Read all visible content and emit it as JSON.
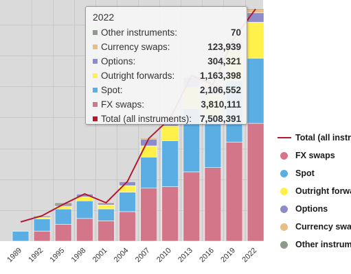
{
  "chart_data": {
    "type": "bar",
    "stacked": true,
    "categories": [
      "1989",
      "1992",
      "1995",
      "1998",
      "2001",
      "2004",
      "2007",
      "2010",
      "2013",
      "2016",
      "2019",
      "2022"
    ],
    "series": [
      {
        "name": "FX swaps",
        "color": "#D3768A",
        "values": [
          0,
          324000,
          546000,
          734000,
          656000,
          954000,
          1714000,
          1759000,
          2240000,
          2378000,
          3202000,
          3810111
        ]
      },
      {
        "name": "Spot",
        "color": "#5BAEE4",
        "values": [
          317000,
          394000,
          494000,
          568000,
          386000,
          631000,
          1005000,
          1489000,
          2047000,
          1652000,
          1979000,
          2106552
        ]
      },
      {
        "name": "Outright forwards",
        "color": "#FFF04A",
        "values": [
          0,
          58000,
          97000,
          128000,
          130000,
          209000,
          362000,
          475000,
          679000,
          700000,
          999000,
          1163398
        ]
      },
      {
        "name": "Options",
        "color": "#8C8CCB",
        "values": [
          0,
          27000,
          41000,
          87000,
          60000,
          119000,
          212000,
          207000,
          337000,
          254000,
          294000,
          304321
        ]
      },
      {
        "name": "Currency swaps",
        "color": "#E6BE86",
        "values": [
          0,
          2000,
          4000,
          10000,
          7000,
          21000,
          31000,
          43000,
          54000,
          82000,
          108000,
          123939
        ]
      },
      {
        "name": "Other instruments",
        "color": "#8E9A8C",
        "values": [
          0,
          0,
          44000,
          0,
          0,
          0,
          0,
          0,
          0,
          0,
          0,
          70
        ]
      }
    ],
    "line_series": {
      "name": "Total (all instruments)",
      "color": "#B4182E",
      "values": [
        620000,
        820000,
        1190000,
        1530000,
        1240000,
        1930000,
        3320000,
        3970000,
        5360000,
        5070000,
        6580000,
        7508391
      ]
    },
    "ylim": [
      0,
      7800000
    ],
    "grid": true,
    "legend_position": "right",
    "tooltip": {
      "title": "2022",
      "rows": [
        {
          "label": "Other instruments:",
          "value": "70",
          "color": "#8E9A8C"
        },
        {
          "label": "Currency swaps:",
          "value": "123,939",
          "color": "#E6BE86"
        },
        {
          "label": "Options:",
          "value": "304,321",
          "color": "#8C8CCB"
        },
        {
          "label": "Outright forwards:",
          "value": "1,163,398",
          "color": "#FFF04A"
        },
        {
          "label": "Spot:",
          "value": "2,106,552",
          "color": "#5BAEE4"
        },
        {
          "label": "FX swaps:",
          "value": "3,810,111",
          "color": "#D3768A"
        },
        {
          "label": "Total (all instruments):",
          "value": "7,508,391",
          "color": "#B4182E"
        }
      ]
    },
    "legend": [
      {
        "label": "Total (all instruments)",
        "color": "#B4182E",
        "marker": "line"
      },
      {
        "label": "FX swaps",
        "color": "#D3768A",
        "marker": "dot"
      },
      {
        "label": "Spot",
        "color": "#5BAEE4",
        "marker": "dot"
      },
      {
        "label": "Outright forwards",
        "color": "#FFF04A",
        "marker": "dot"
      },
      {
        "label": "Options",
        "color": "#8C8CCB",
        "marker": "dot"
      },
      {
        "label": "Currency swaps",
        "color": "#E6BE86",
        "marker": "dot"
      },
      {
        "label": "Other instruments",
        "color": "#8E9A8C",
        "marker": "dot"
      }
    ]
  }
}
